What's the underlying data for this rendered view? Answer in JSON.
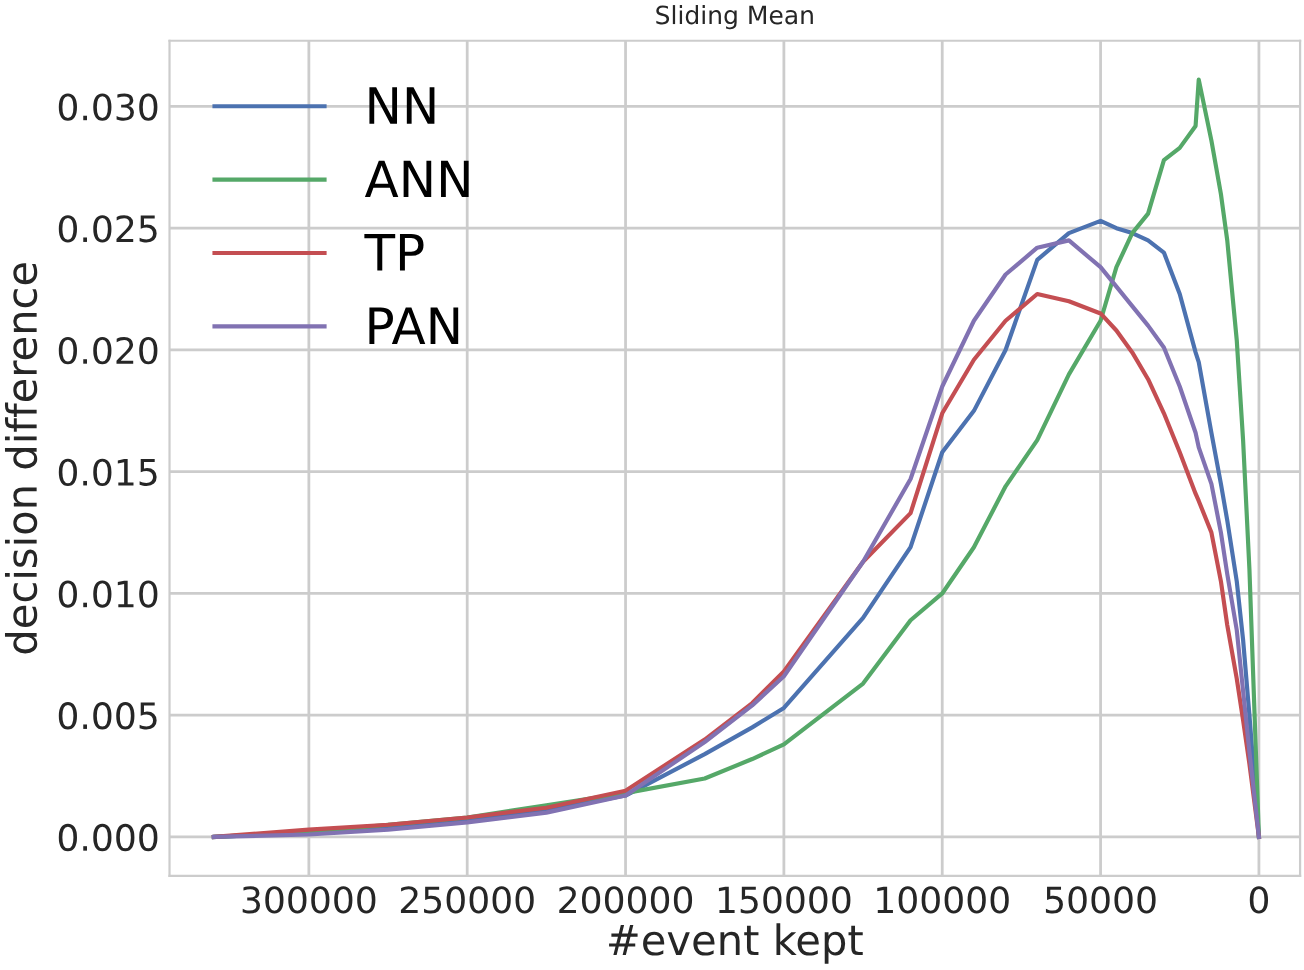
{
  "chart_data": {
    "type": "line",
    "title": "Sliding Mean",
    "xlabel": "#event kept",
    "ylabel": "decision difference",
    "x": [
      330000,
      300000,
      275000,
      250000,
      225000,
      200000,
      175000,
      160000,
      150000,
      125000,
      110000,
      100000,
      90000,
      80000,
      70000,
      60000,
      50000,
      45000,
      40000,
      35000,
      30000,
      25000,
      20000,
      19000,
      15000,
      12000,
      10000,
      7000,
      5000,
      3000,
      0
    ],
    "series": [
      {
        "name": "NN",
        "color": "#4c72b0",
        "values": [
          0,
          0.0002,
          0.0004,
          0.0007,
          0.0011,
          0.0017,
          0.0034,
          0.0045,
          0.0053,
          0.009,
          0.0119,
          0.0158,
          0.0175,
          0.02,
          0.0237,
          0.0248,
          0.0253,
          0.025,
          0.0248,
          0.0245,
          0.024,
          0.0223,
          0.0199,
          0.0195,
          0.0166,
          0.0145,
          0.013,
          0.0105,
          0.0081,
          0.005,
          0
        ]
      },
      {
        "name": "ANN",
        "color": "#55a868",
        "values": [
          0,
          0.0002,
          0.0005,
          0.0008,
          0.0013,
          0.0018,
          0.0024,
          0.0032,
          0.0038,
          0.0063,
          0.0089,
          0.01,
          0.0119,
          0.0144,
          0.0163,
          0.019,
          0.0212,
          0.0234,
          0.0248,
          0.0256,
          0.0278,
          0.0283,
          0.0292,
          0.0311,
          0.0286,
          0.0264,
          0.0245,
          0.0204,
          0.0163,
          0.011,
          0
        ]
      },
      {
        "name": "TP",
        "color": "#c44e52",
        "values": [
          0,
          0.0003,
          0.0005,
          0.0008,
          0.0012,
          0.0019,
          0.004,
          0.0055,
          0.0068,
          0.0113,
          0.0133,
          0.0174,
          0.0196,
          0.0212,
          0.0223,
          0.022,
          0.0215,
          0.0208,
          0.0199,
          0.0188,
          0.0174,
          0.0158,
          0.0141,
          0.0138,
          0.0125,
          0.0105,
          0.0087,
          0.0065,
          0.0048,
          0.003,
          0
        ]
      },
      {
        "name": "PAN",
        "color": "#8172b2",
        "values": [
          0,
          0.0001,
          0.0003,
          0.0006,
          0.001,
          0.0017,
          0.0039,
          0.0054,
          0.0066,
          0.0113,
          0.0147,
          0.0185,
          0.0212,
          0.0231,
          0.0242,
          0.0245,
          0.0234,
          0.0226,
          0.0218,
          0.021,
          0.0201,
          0.0185,
          0.0166,
          0.016,
          0.0145,
          0.0125,
          0.0108,
          0.0085,
          0.006,
          0.0035,
          0
        ]
      }
    ],
    "xlim": [
      344000,
      -13000
    ],
    "ylim": [
      -0.0016,
      0.0327
    ],
    "xticks": [
      300000,
      250000,
      200000,
      150000,
      100000,
      50000,
      0
    ],
    "yticks": [
      {
        "value": 0,
        "label": "0.000"
      },
      {
        "value": 0.005,
        "label": "0.005"
      },
      {
        "value": 0.01,
        "label": "0.010"
      },
      {
        "value": 0.015,
        "label": "0.015"
      },
      {
        "value": 0.02,
        "label": "0.020"
      },
      {
        "value": 0.025,
        "label": "0.025"
      },
      {
        "value": 0.03,
        "label": "0.030"
      }
    ],
    "grid": true,
    "legend": "top left",
    "marker": "none",
    "line_style": "solid"
  }
}
